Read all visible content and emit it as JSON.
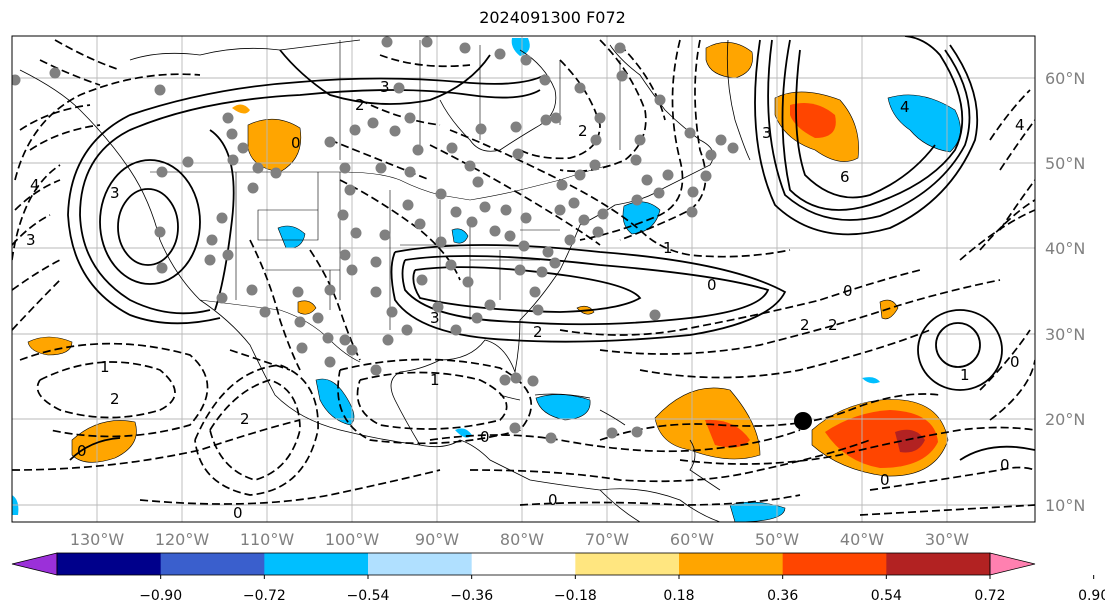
{
  "title": "2024091300 F072",
  "map": {
    "lon_labels": [
      "130°W",
      "120°W",
      "110°W",
      "100°W",
      "90°W",
      "80°W",
      "70°W",
      "60°W",
      "50°W",
      "40°W",
      "30°W"
    ],
    "lat_labels": [
      "60°N",
      "50°N",
      "40°N",
      "30°N",
      "20°N",
      "10°N"
    ],
    "contour_labels": [
      "0",
      "0",
      "0",
      "0",
      "0",
      "0",
      "0",
      "0",
      "0",
      "0",
      "1",
      "1",
      "1",
      "1",
      "2",
      "2",
      "2",
      "2",
      "2",
      "2",
      "2",
      "3",
      "3",
      "3",
      "3",
      "3",
      "4",
      "4",
      "4",
      "6"
    ],
    "storm_marker_color": "#000000",
    "station_color": "#808080"
  },
  "colorbar": {
    "colors": [
      "#9b30d9",
      "#00008b",
      "#3a5fcd",
      "#00bfff",
      "#b0e0ff",
      "#ffffff",
      "#ffe680",
      "#ffa500",
      "#ff4500",
      "#b22222",
      "#ff80b0"
    ],
    "tick_labels": [
      "−0.90",
      "−0.72",
      "−0.54",
      "−0.36",
      "−0.18",
      "0.18",
      "0.36",
      "0.54",
      "0.72",
      "0.90"
    ]
  }
}
